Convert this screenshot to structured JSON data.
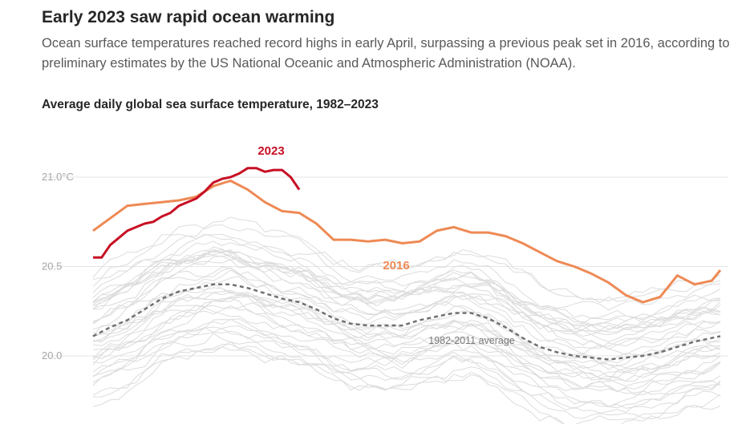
{
  "header": {
    "title": "Early 2023 saw rapid ocean warming",
    "subtitle": "Ocean surface temperatures reached record highs in early April, surpassing a previous peak set in 2016, according to preliminary estimates by the US National Oceanic and Atmospheric Administration (NOAA)."
  },
  "chart_data": {
    "type": "line",
    "title": "Average daily global sea surface temperature, 1982–2023",
    "xlabel": "",
    "ylabel": "",
    "ylim": [
      19.9,
      21.1
    ],
    "xlim": [
      0,
      365
    ],
    "yticks": [
      {
        "value": 21.0,
        "label": "21.0°C"
      },
      {
        "value": 20.5,
        "label": "20.5"
      },
      {
        "value": 20.0,
        "label": "20.0"
      }
    ],
    "colors": {
      "2023": "#c70f24",
      "2016": "#ee8a55",
      "average": "#707070",
      "background_years": "#dcdcdc",
      "grid": "#e6e6e6"
    },
    "series": [
      {
        "name": "2023",
        "label": "2023",
        "x": [
          0,
          5,
          10,
          15,
          20,
          25,
          30,
          35,
          40,
          45,
          50,
          55,
          60,
          65,
          70,
          75,
          80,
          85,
          90,
          95,
          100,
          105,
          110,
          115,
          120
        ],
        "values": [
          20.55,
          20.55,
          20.62,
          20.66,
          20.7,
          20.72,
          20.74,
          20.75,
          20.78,
          20.8,
          20.84,
          20.86,
          20.88,
          20.92,
          20.97,
          20.99,
          21.0,
          21.02,
          21.05,
          21.05,
          21.03,
          21.04,
          21.04,
          21.0,
          20.93
        ]
      },
      {
        "name": "2016",
        "label": "2016",
        "x": [
          0,
          10,
          20,
          30,
          40,
          50,
          60,
          70,
          80,
          90,
          100,
          110,
          120,
          130,
          140,
          150,
          160,
          170,
          180,
          190,
          200,
          210,
          220,
          230,
          240,
          250,
          260,
          270,
          280,
          290,
          300,
          310,
          320,
          330,
          340,
          350,
          360,
          365
        ],
        "values": [
          20.7,
          20.77,
          20.84,
          20.85,
          20.86,
          20.87,
          20.89,
          20.95,
          20.98,
          20.93,
          20.86,
          20.81,
          20.8,
          20.74,
          20.65,
          20.65,
          20.64,
          20.65,
          20.63,
          20.64,
          20.7,
          20.72,
          20.69,
          20.69,
          20.67,
          20.63,
          20.58,
          20.53,
          20.5,
          20.46,
          20.41,
          20.34,
          20.3,
          20.33,
          20.45,
          20.4,
          20.42,
          20.48
        ]
      },
      {
        "name": "1982-2011 average",
        "label": "1982-2011 average",
        "x": [
          0,
          10,
          20,
          30,
          40,
          50,
          60,
          70,
          80,
          90,
          100,
          110,
          120,
          130,
          140,
          150,
          160,
          170,
          180,
          190,
          200,
          210,
          220,
          230,
          240,
          250,
          260,
          270,
          280,
          290,
          300,
          310,
          320,
          330,
          340,
          350,
          360,
          365
        ],
        "values": [
          20.11,
          20.16,
          20.2,
          20.26,
          20.32,
          20.36,
          20.38,
          20.4,
          20.4,
          20.38,
          20.35,
          20.32,
          20.3,
          20.26,
          20.21,
          20.18,
          20.17,
          20.17,
          20.17,
          20.2,
          20.22,
          20.24,
          20.24,
          20.21,
          20.16,
          20.1,
          20.05,
          20.02,
          20.0,
          19.99,
          19.98,
          19.99,
          20.0,
          20.02,
          20.05,
          20.08,
          20.1,
          20.11
        ]
      }
    ]
  }
}
